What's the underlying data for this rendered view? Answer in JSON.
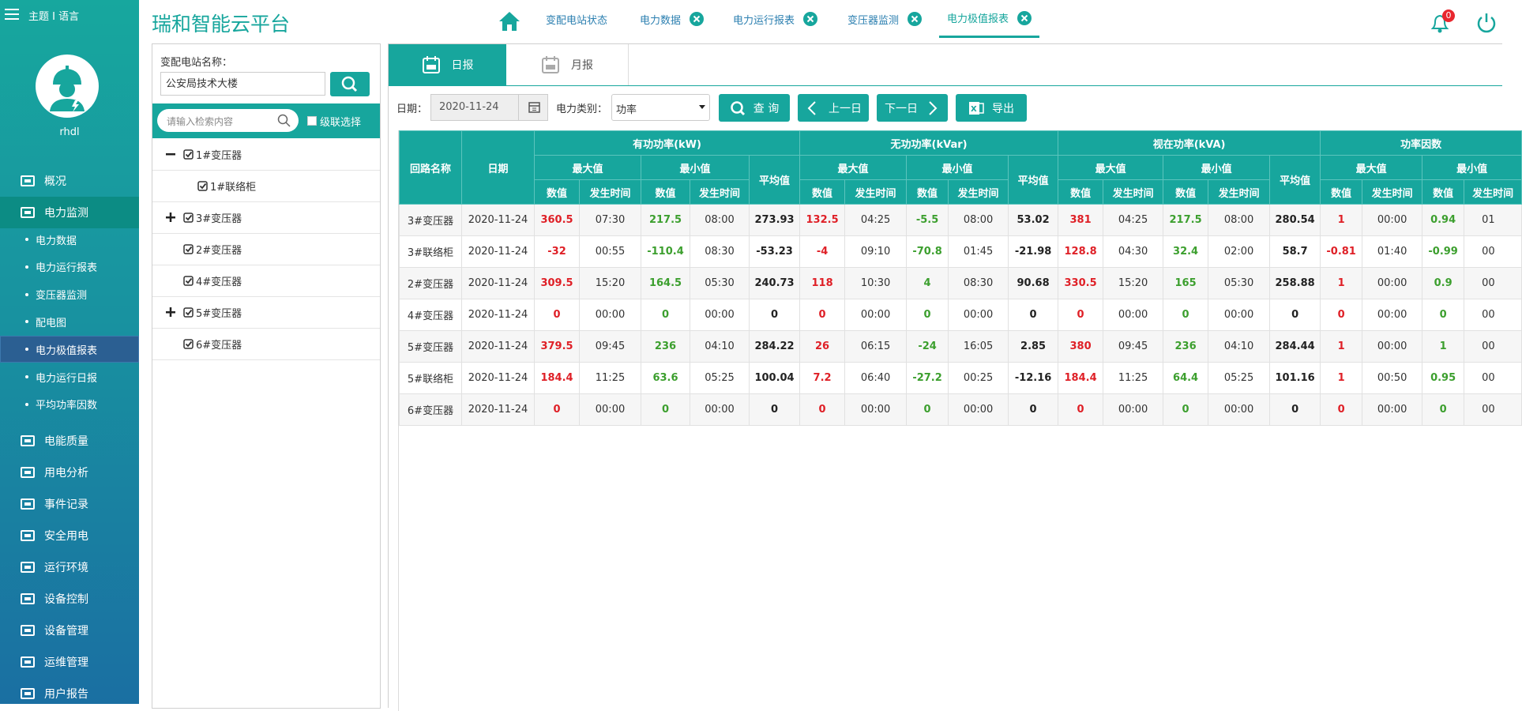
{
  "sidebar": {
    "theme_language": "主题 I 语言",
    "username": "rhdl",
    "menu": [
      {
        "label": "概况"
      },
      {
        "label": "电力监测",
        "active": true,
        "children": [
          {
            "label": "电力数据"
          },
          {
            "label": "电力运行报表"
          },
          {
            "label": "变压器监测"
          },
          {
            "label": "配电图"
          },
          {
            "label": "电力极值报表",
            "selected": true
          },
          {
            "label": "电力运行日报"
          },
          {
            "label": "平均功率因数"
          }
        ]
      },
      {
        "label": "电能质量"
      },
      {
        "label": "用电分析"
      },
      {
        "label": "事件记录"
      },
      {
        "label": "安全用电"
      },
      {
        "label": "运行环境"
      },
      {
        "label": "设备控制"
      },
      {
        "label": "设备管理"
      },
      {
        "label": "运维管理"
      },
      {
        "label": "用户报告"
      }
    ]
  },
  "header": {
    "title": "瑞和智能云平台",
    "tabs": [
      {
        "label": "变配电站状态",
        "closable": false
      },
      {
        "label": "电力数据",
        "closable": true
      },
      {
        "label": "电力运行报表",
        "closable": true
      },
      {
        "label": "变压器监测",
        "closable": true
      },
      {
        "label": "电力极值报表",
        "closable": true,
        "active": true
      }
    ],
    "notification_count": 0
  },
  "tree": {
    "station_label": "变配电站名称：",
    "station_value": "公安局技术大楼",
    "search_placeholder": "请输入检索内容",
    "cascade_label": "级联选择",
    "nodes": [
      {
        "label": "1#变压器",
        "state": "expanded",
        "children": [
          {
            "label": "1#联络柜"
          }
        ]
      },
      {
        "label": "3#变压器",
        "state": "collapsed"
      },
      {
        "label": "2#变压器"
      },
      {
        "label": "4#变压器"
      },
      {
        "label": "5#变压器",
        "state": "collapsed"
      },
      {
        "label": "6#变压器"
      }
    ]
  },
  "report": {
    "tabs": [
      {
        "label": "日报",
        "active": true
      },
      {
        "label": "月报"
      }
    ],
    "date_label": "日期：",
    "date_value": "2020-11-24",
    "category_label": "电力类别：",
    "category_value": "功率",
    "buttons": [
      "查 询",
      "上一日",
      "下一日",
      "导出"
    ],
    "table": {
      "fixed_headers": [
        "回路名称",
        "日期"
      ],
      "groups": [
        "有功功率(kW)",
        "无功功率(kVar)",
        "视在功率(kVA)",
        "功率因数"
      ],
      "max_label": "最大值",
      "min_label": "最小值",
      "avg_label": "平均值",
      "value_label": "数值",
      "time_label": "发生时间",
      "rows": [
        [
          "3#变压器",
          "2020-11-24",
          360.5,
          "07:30",
          217.5,
          "08:00",
          273.93,
          132.5,
          "04:25",
          -5.5,
          "08:00",
          53.02,
          381,
          "04:25",
          217.5,
          "08:00",
          280.54,
          1,
          "00:00",
          0.94,
          "01"
        ],
        [
          "3#联络柜",
          "2020-11-24",
          -32,
          "00:55",
          -110.4,
          "08:30",
          -53.23,
          -4,
          "09:10",
          -70.8,
          "01:45",
          -21.98,
          128.8,
          "04:30",
          32.4,
          "02:00",
          58.7,
          -0.81,
          "01:40",
          -0.99,
          "00"
        ],
        [
          "2#变压器",
          "2020-11-24",
          309.5,
          "15:20",
          164.5,
          "05:30",
          240.73,
          118,
          "10:30",
          4,
          "08:30",
          90.68,
          330.5,
          "15:20",
          165,
          "05:30",
          258.88,
          1,
          "00:00",
          0.9,
          "00"
        ],
        [
          "4#变压器",
          "2020-11-24",
          0,
          "00:00",
          0,
          "00:00",
          0,
          0,
          "00:00",
          0,
          "00:00",
          0,
          0,
          "00:00",
          0,
          "00:00",
          0,
          0,
          "00:00",
          0,
          "00"
        ],
        [
          "5#变压器",
          "2020-11-24",
          379.5,
          "09:45",
          236,
          "04:10",
          284.22,
          26,
          "06:15",
          -24,
          "16:05",
          2.85,
          380,
          "09:45",
          236,
          "04:10",
          284.44,
          1,
          "00:00",
          1,
          "00"
        ],
        [
          "5#联络柜",
          "2020-11-24",
          184.4,
          "11:25",
          63.6,
          "05:25",
          100.04,
          7.2,
          "06:40",
          -27.2,
          "00:25",
          -12.16,
          184.4,
          "11:25",
          64.4,
          "05:25",
          101.16,
          1,
          "00:50",
          0.95,
          "00"
        ],
        [
          "6#变压器",
          "2020-11-24",
          0,
          "00:00",
          0,
          "00:00",
          0,
          0,
          "00:00",
          0,
          "00:00",
          0,
          0,
          "00:00",
          0,
          "00:00",
          0,
          0,
          "00:00",
          0,
          "00"
        ]
      ]
    }
  }
}
